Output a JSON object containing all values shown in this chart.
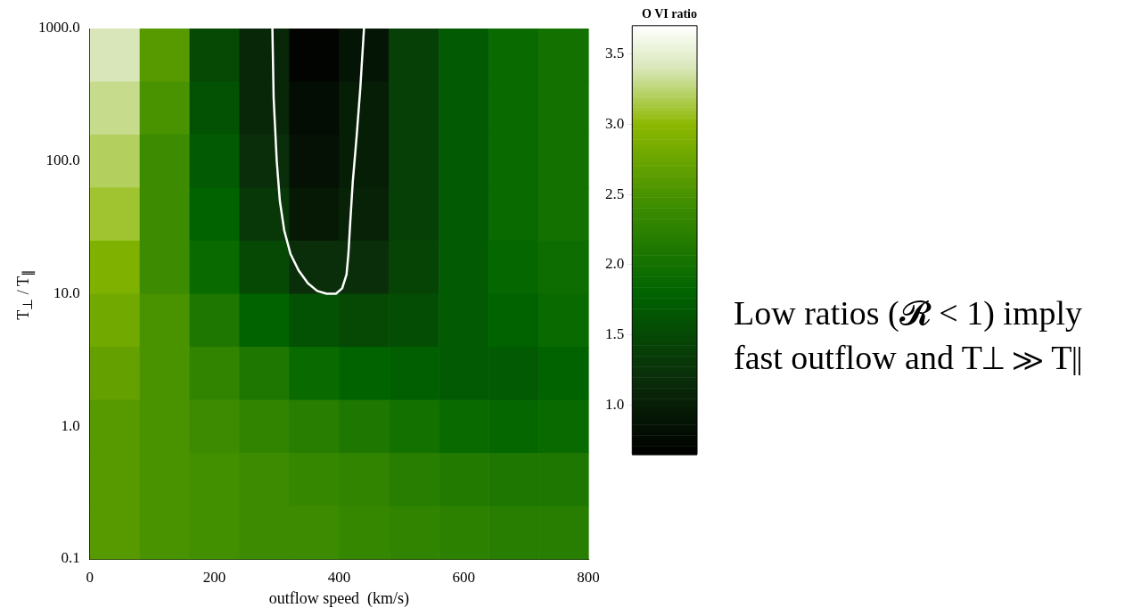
{
  "chart_data": {
    "type": "heatmap",
    "xlabel": "outflow speed  (km/s)",
    "ylabel": "T$_{⊥}$ / T$_{∥}$",
    "clabel": "O VI ratio",
    "annotations": [
      "Low ratios (𝓡 < 1) imply fast outflow and T⊥ ≫ T∥"
    ],
    "log": "y",
    "xlim": [
      0,
      800
    ],
    "xticks": [
      0,
      200,
      400,
      600,
      800
    ],
    "ylim": [
      0.1,
      1000
    ],
    "yticks": [
      {
        "value": 0.1,
        "label": "0.1"
      },
      {
        "value": 1,
        "label": "1.0"
      },
      {
        "value": 10,
        "label": "10.0"
      },
      {
        "value": 100,
        "label": "100.0"
      },
      {
        "value": 1000,
        "label": "1000.0"
      }
    ],
    "clim": [
      0.65,
      3.7
    ],
    "cticks": [
      {
        "value": 1,
        "label": "1.0"
      },
      {
        "value": 1.5,
        "label": "1.5"
      },
      {
        "value": 2,
        "label": "2.0"
      },
      {
        "value": 2.5,
        "label": "2.5"
      },
      {
        "value": 3,
        "label": "3.0"
      },
      {
        "value": 3.5,
        "label": "3.5"
      }
    ],
    "cells": [
      [
        3.4,
        2.6,
        1.5,
        1.1,
        0.7,
        0.9,
        1.4,
        1.7,
        1.9,
        2.0
      ],
      [
        3.3,
        2.5,
        1.6,
        1.1,
        0.8,
        1.0,
        1.4,
        1.7,
        1.9,
        2.0
      ],
      [
        3.2,
        2.4,
        1.7,
        1.2,
        0.85,
        1.0,
        1.4,
        1.7,
        1.9,
        2.0
      ],
      [
        3.1,
        2.4,
        1.8,
        1.3,
        0.95,
        1.05,
        1.4,
        1.7,
        1.9,
        2.0
      ],
      [
        2.9,
        2.4,
        1.9,
        1.5,
        1.2,
        1.2,
        1.45,
        1.7,
        1.85,
        1.95
      ],
      [
        2.8,
        2.5,
        2.1,
        1.8,
        1.6,
        1.5,
        1.55,
        1.7,
        1.8,
        1.9
      ],
      [
        2.7,
        2.5,
        2.3,
        2.1,
        1.9,
        1.8,
        1.75,
        1.7,
        1.7,
        1.8
      ],
      [
        2.6,
        2.5,
        2.4,
        2.3,
        2.2,
        2.1,
        2.0,
        1.9,
        1.85,
        1.9
      ],
      [
        2.6,
        2.5,
        2.45,
        2.4,
        2.35,
        2.3,
        2.2,
        2.15,
        2.1,
        2.1
      ],
      [
        2.6,
        2.5,
        2.45,
        2.4,
        2.4,
        2.35,
        2.3,
        2.25,
        2.2,
        2.2
      ]
    ],
    "series": [
      {
        "type": "line",
        "color": "#ffffff",
        "x": [
          293,
          295,
          300,
          305,
          312,
          322,
          335,
          350,
          365,
          380,
          395,
          405,
          412,
          415,
          418,
          422,
          428,
          434,
          440
        ],
        "values": [
          1000,
          300,
          100,
          50,
          30,
          20,
          15,
          12,
          10.5,
          10,
          10,
          11,
          14,
          20,
          35,
          70,
          150,
          350,
          1000
        ]
      }
    ]
  }
}
